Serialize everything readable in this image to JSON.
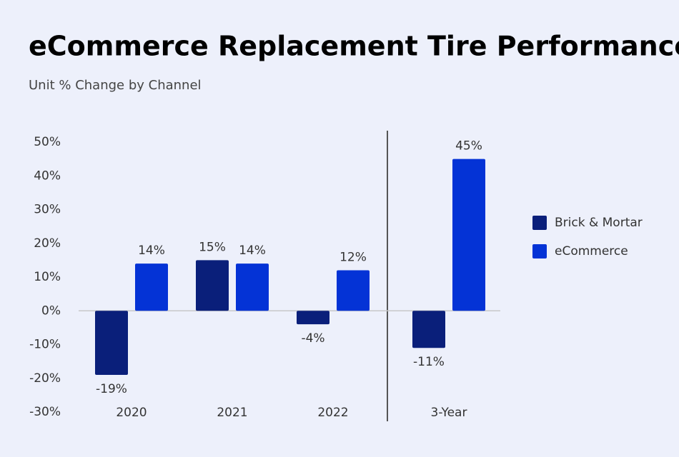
{
  "chart_data": {
    "type": "bar",
    "title": "eCommerce Replacement Tire Performance",
    "subtitle": "Unit % Change by Channel",
    "categories": [
      "2020",
      "2021",
      "2022",
      "3-Year"
    ],
    "series": [
      {
        "name": "Brick & Mortar",
        "color": "#0a1f7a",
        "values": [
          -19,
          15,
          -4,
          -11
        ],
        "value_labels": [
          "-19%",
          "15%",
          "-4%",
          "-11%"
        ]
      },
      {
        "name": "eCommerce",
        "color": "#0433d6",
        "values": [
          14,
          14,
          12,
          45
        ],
        "value_labels": [
          "14%",
          "14%",
          "12%",
          "45%"
        ]
      }
    ],
    "ylim": [
      -30,
      50
    ],
    "yticks": [
      {
        "value": -30,
        "label": "-30%"
      },
      {
        "value": -20,
        "label": "-20%"
      },
      {
        "value": -10,
        "label": "-10%"
      },
      {
        "value": 0,
        "label": "0%"
      },
      {
        "value": 10,
        "label": "10%"
      },
      {
        "value": 20,
        "label": "20%"
      },
      {
        "value": 30,
        "label": "30%"
      },
      {
        "value": 40,
        "label": "40%"
      },
      {
        "value": 50,
        "label": "50%"
      }
    ],
    "legend": "right"
  }
}
